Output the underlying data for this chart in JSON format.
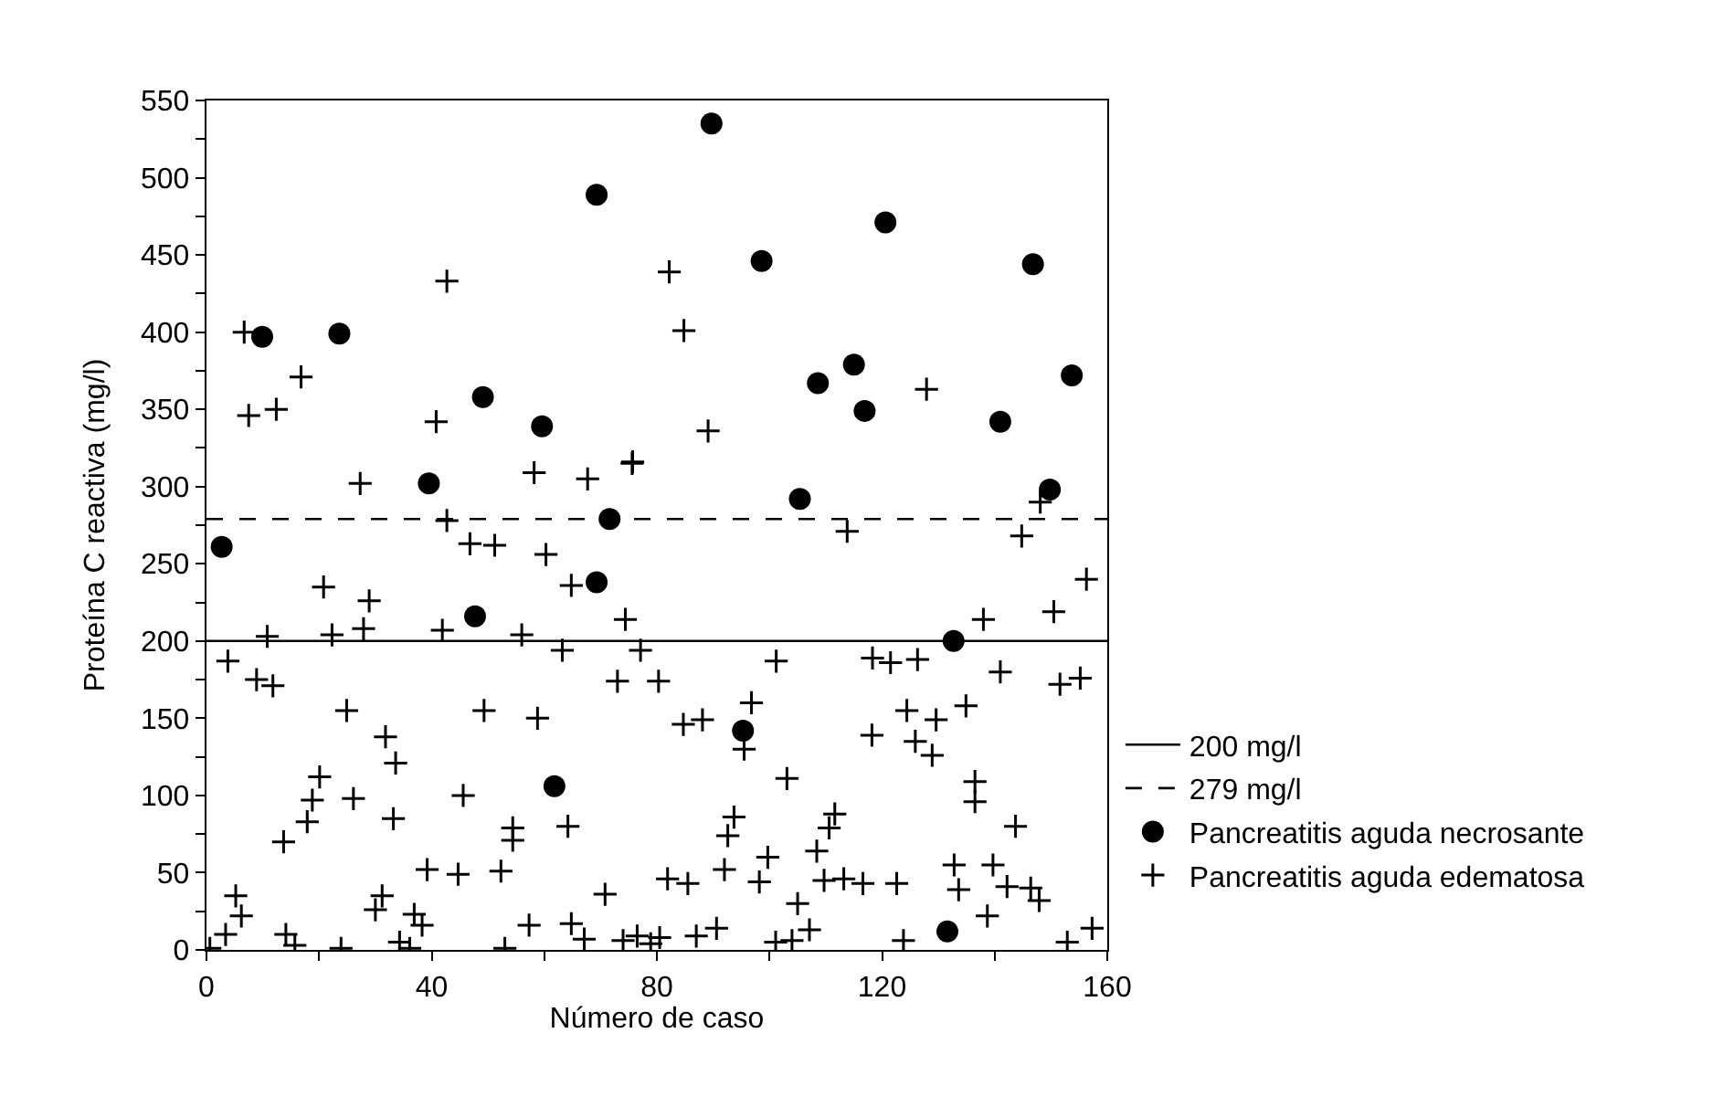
{
  "chart_data": {
    "type": "scatter",
    "xlabel": "Número de caso",
    "ylabel": "Proteína C reactiva (mg/l)",
    "xlim": [
      0,
      160
    ],
    "xticks": [
      0,
      {
        "value": 20,
        "label": null
      },
      40,
      {
        "value": 60,
        "label": null
      },
      80,
      {
        "value": 100,
        "label": null
      },
      120,
      {
        "value": 140,
        "label": null
      },
      160
    ],
    "ylim": [
      0,
      550
    ],
    "yticks": [
      0,
      {
        "value": 25,
        "label": null
      },
      50,
      {
        "value": 75,
        "label": null
      },
      100,
      {
        "value": 125,
        "label": null
      },
      150,
      {
        "value": 175,
        "label": null
      },
      200,
      {
        "value": 225,
        "label": null
      },
      250,
      {
        "value": 275,
        "label": null
      },
      300,
      {
        "value": 325,
        "label": null
      },
      350,
      {
        "value": 375,
        "label": null
      },
      400,
      {
        "value": 425,
        "label": null
      },
      450,
      {
        "value": 475,
        "label": null
      },
      500,
      {
        "value": 525,
        "label": null
      },
      550
    ],
    "legend": "bottom right",
    "ref_lines": [
      {
        "axis": "y",
        "value": 200,
        "label": "200 mg/l",
        "color": "#000000",
        "line_style": "solid"
      },
      {
        "axis": "y",
        "value": 279,
        "label": "279 mg/l",
        "color": "#000000",
        "line_style": "dashed"
      }
    ],
    "series": [
      {
        "name": "Pancreatitis aguda necrosante",
        "color": "#000000",
        "marker": "circle",
        "x": [
          2.7,
          9.9,
          23.6,
          39.5,
          47.7,
          49.1,
          59.6,
          61.8,
          69.3,
          69.3,
          71.6,
          89.7,
          95.3,
          98.6,
          105.4,
          108.6,
          115.0,
          116.9,
          120.6,
          131.6,
          132.7,
          141.0,
          146.8,
          149.8,
          153.7
        ],
        "values": [
          261,
          397,
          399,
          302,
          216,
          358,
          339,
          106,
          238,
          489,
          279,
          535,
          142,
          446,
          292,
          367,
          379,
          349,
          471,
          12,
          200,
          342,
          444,
          298,
          372
        ]
      },
      {
        "name": "Pancreatitis aguda edematosa",
        "color": "#000000",
        "marker": "cross",
        "x": [
          0.6,
          3.4,
          3.8,
          5.2,
          6.2,
          6.7,
          7.5,
          8.9,
          10.8,
          11.8,
          12.4,
          13.7,
          14.1,
          15.7,
          16.8,
          17.9,
          18.8,
          20.1,
          20.8,
          22.3,
          23.9,
          24.9,
          26.1,
          27.3,
          27.9,
          28.9,
          30.0,
          31.2,
          31.8,
          33.2,
          33.6,
          34.3,
          36.1,
          36.9,
          38.3,
          39.2,
          40.8,
          41.9,
          42.7,
          42.7,
          44.7,
          45.6,
          46.8,
          49.3,
          51.2,
          52.3,
          53.0,
          54.4,
          54.4,
          56.0,
          57.3,
          58.2,
          58.8,
          60.3,
          63.2,
          64.2,
          64.8,
          64.8,
          67.1,
          67.7,
          70.8,
          73.0,
          74.0,
          74.4,
          75.6,
          75.7,
          76.5,
          77.1,
          78.9,
          80.3,
          80.5,
          81.9,
          82.2,
          84.7,
          84.8,
          85.5,
          87.0,
          88.1,
          89.1,
          90.6,
          92.0,
          92.6,
          93.7,
          95.5,
          96.8,
          98.2,
          99.7,
          101.1,
          101.2,
          103.1,
          104.0,
          105.0,
          107.1,
          108.4,
          109.7,
          110.6,
          111.6,
          113.2,
          113.8,
          116.6,
          118.2,
          118.3,
          121.5,
          122.6,
          123.8,
          124.4,
          125.9,
          126.3,
          127.9,
          128.9,
          129.6,
          132.8,
          133.6,
          134.9,
          136.5,
          136.5,
          138.0,
          138.7,
          139.7,
          141.0,
          142.2,
          143.7,
          144.8,
          146.4,
          147.9,
          148.1,
          150.5,
          151.6,
          152.9,
          155.2,
          156.3,
          157.3
        ],
        "values": [
          1,
          10,
          187,
          35,
          22,
          400,
          346,
          175,
          203,
          171,
          350,
          70,
          10,
          3,
          371,
          83,
          97,
          112,
          235,
          204,
          1,
          155,
          98,
          302,
          208,
          226,
          26,
          35,
          138,
          85,
          121,
          5,
          1,
          23,
          16,
          52,
          342,
          207,
          433,
          278,
          49,
          100,
          263,
          155,
          262,
          51,
          1,
          79,
          71,
          204,
          16,
          309,
          150,
          256,
          194,
          80,
          236,
          17,
          7,
          305,
          36,
          174,
          6,
          214,
          315,
          316,
          9,
          194,
          4,
          174,
          8,
          46,
          439,
          146,
          401,
          43,
          9,
          149,
          336,
          14,
          52,
          74,
          86,
          130,
          160,
          44,
          60,
          5,
          187,
          111,
          6,
          30,
          13,
          64,
          45,
          79,
          88,
          46,
          271,
          43,
          139,
          189,
          186,
          43,
          6,
          155,
          135,
          188,
          363,
          126,
          149,
          55,
          39,
          158,
          109,
          96,
          214,
          22,
          55,
          180,
          41,
          80,
          268,
          40,
          32,
          290,
          219,
          172,
          5,
          176,
          240,
          14
        ]
      }
    ]
  }
}
